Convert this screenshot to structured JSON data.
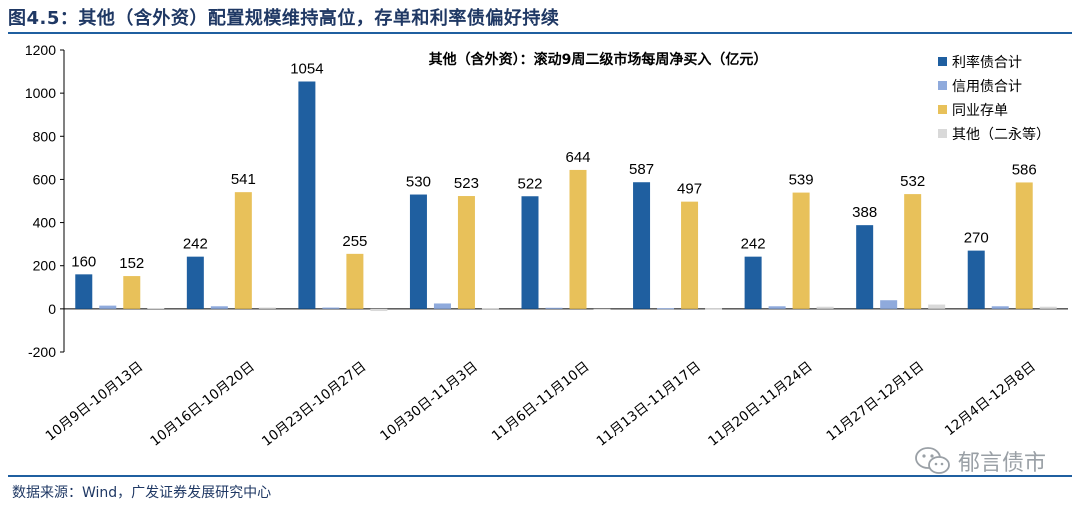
{
  "figure_title": "图4.5：其他（含外资）配置规模维持高位，存单和利率债偏好持续",
  "source_note": "数据来源：Wind，广发证券发展研究中心",
  "watermark": {
    "text": "郁言债市",
    "icon": "wechat-icon"
  },
  "colors": {
    "rate_bond": "#1f5fa0",
    "credit_bond": "#8faadc",
    "ncd": "#e8c15a",
    "other": "#d9d9d9",
    "title": "#1f3864"
  },
  "chart_data": {
    "type": "bar",
    "title": "其他（含外资）：滚动9周二级市场每周净买入（亿元）",
    "xlabel": "",
    "ylabel": "",
    "ylim": [
      -200,
      1200
    ],
    "yticks": [
      -200,
      0,
      200,
      400,
      600,
      800,
      1000,
      1200
    ],
    "legend_position": "top-right",
    "grid": false,
    "categories": [
      "10月9日-10月13日",
      "10月16日-10月20日",
      "10月23日-10月27日",
      "10月30日-11月3日",
      "11月6日-11月10日",
      "11月13日-11月17日",
      "11月20日-11月24日",
      "11月27日-12月1日",
      "12月4日-12月8日"
    ],
    "series": [
      {
        "name": "利率债合计",
        "color_key": "rate_bond",
        "values": [
          160,
          242,
          1054,
          530,
          522,
          587,
          242,
          388,
          270
        ],
        "labeled": true
      },
      {
        "name": "信用债合计",
        "color_key": "credit_bond",
        "values": [
          15,
          12,
          6,
          25,
          5,
          3,
          12,
          40,
          12
        ],
        "labeled": false
      },
      {
        "name": "同业存单",
        "color_key": "ncd",
        "values": [
          152,
          541,
          255,
          523,
          644,
          497,
          539,
          532,
          586
        ],
        "labeled": true
      },
      {
        "name": "其他（二永等）",
        "color_key": "other",
        "values": [
          4,
          6,
          -10,
          3,
          -4,
          2,
          10,
          20,
          10
        ],
        "labeled": false
      }
    ]
  }
}
